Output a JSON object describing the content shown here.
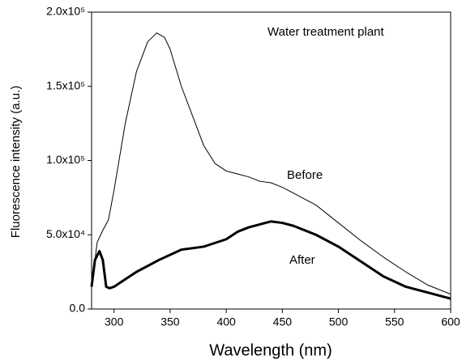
{
  "chart_data": {
    "type": "line",
    "x_label": "Wavelength (nm)",
    "y_label": "Fluorescence intensity (a.u.)",
    "annotations": [
      "Water treatment plant",
      "Before",
      "After"
    ],
    "xlim": [
      280,
      600
    ],
    "xticks": [
      300,
      350,
      400,
      450,
      500,
      550,
      600
    ],
    "ylim": [
      0,
      200000
    ],
    "yticks": [
      {
        "value": 0,
        "label": "0.0"
      },
      {
        "value": 50000,
        "label": "5.0x10⁴"
      },
      {
        "value": 100000,
        "label": "1.0x10⁵"
      },
      {
        "value": 150000,
        "label": "1.5x10⁵"
      },
      {
        "value": 200000,
        "label": "2.0x10⁵"
      }
    ],
    "series": [
      {
        "name": "Before",
        "color": "#000000",
        "line_width": 1,
        "x": [
          280,
          285,
          290,
          295,
          300,
          310,
          320,
          330,
          338,
          345,
          350,
          360,
          370,
          380,
          390,
          400,
          410,
          420,
          430,
          440,
          450,
          460,
          470,
          480,
          490,
          500,
          520,
          540,
          560,
          580,
          600
        ],
        "values": [
          15000,
          45000,
          53000,
          60000,
          80000,
          125000,
          160000,
          180000,
          186000,
          183000,
          175000,
          150000,
          130000,
          110000,
          98000,
          93000,
          91000,
          89000,
          86000,
          85000,
          82000,
          78000,
          74000,
          70000,
          64000,
          58000,
          46000,
          35000,
          25000,
          16000,
          10000
        ]
      },
      {
        "name": "After",
        "color": "#000000",
        "line_width": 3,
        "x": [
          280,
          283,
          287,
          290,
          293,
          296,
          300,
          310,
          320,
          340,
          360,
          380,
          400,
          410,
          420,
          440,
          450,
          460,
          480,
          500,
          520,
          540,
          560,
          580,
          600
        ],
        "values": [
          15000,
          33000,
          39000,
          33000,
          15000,
          14000,
          15000,
          20000,
          25000,
          33000,
          40000,
          42000,
          47000,
          52000,
          55000,
          59000,
          58000,
          56000,
          50000,
          42000,
          32000,
          22000,
          15000,
          11000,
          7000
        ]
      }
    ]
  }
}
